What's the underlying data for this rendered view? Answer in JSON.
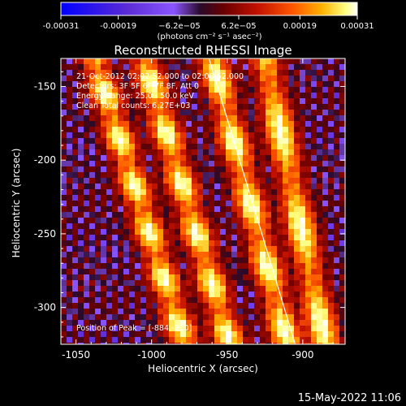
{
  "colorbar": {
    "ticks": [
      "-0.00031",
      "-0.00019",
      "−6.2e−05",
      "6.2e−05",
      "0.00019",
      "0.00031"
    ],
    "tick_values": [
      -0.00031,
      -0.00019,
      -6.2e-05,
      6.2e-05,
      0.00019,
      0.00031
    ],
    "range": [
      -0.00031,
      0.00031
    ],
    "units_label": "(photons cm⁻² s⁻¹ asec⁻²)",
    "colors": [
      "#0000ff",
      "#5a2bd6",
      "#8a55ff",
      "#2a0a2a",
      "#6a0000",
      "#c01000",
      "#ff5500",
      "#ffb000",
      "#ffff80",
      "#ffffff"
    ]
  },
  "chart_data": {
    "type": "heatmap",
    "title": "Reconstructed RHESSI Image",
    "xlabel": "Heliocentric X (arcsec)",
    "ylabel": "Heliocentric Y (arcsec)",
    "xlim": [
      -1060,
      -872
    ],
    "ylim": [
      -325,
      -131
    ],
    "xticks": [
      -1050,
      -1000,
      -950,
      -900
    ],
    "yticks": [
      -300,
      -250,
      -200,
      -150
    ],
    "annotations": {
      "time": "21-Oct-2012 02:02:52.000 to 02:08:52.000",
      "detectors": "Detectors: 3F 5F 6F 7F 8F, Att 0",
      "energy": "Energy Range: 25.0 - 50.0 keV",
      "clean": "Clean    Total counts: 6.27E+03",
      "peak": "Position of Peak = [-884,-210]"
    },
    "limb_line": {
      "x": [
        -962,
        -905
      ],
      "y": [
        -131,
        -325
      ]
    },
    "peak_position": [
      -884,
      -210
    ],
    "bright_ridges": [
      {
        "x_at_top": -1038,
        "x_at_bottom": -978
      },
      {
        "x_at_top": -1005,
        "x_at_bottom": -948
      },
      {
        "x_at_top": -960,
        "x_at_bottom": -910
      },
      {
        "x_at_top": -925,
        "x_at_bottom": -885
      }
    ]
  },
  "footer": {
    "timestamp": "15-May-2022 11:06"
  }
}
